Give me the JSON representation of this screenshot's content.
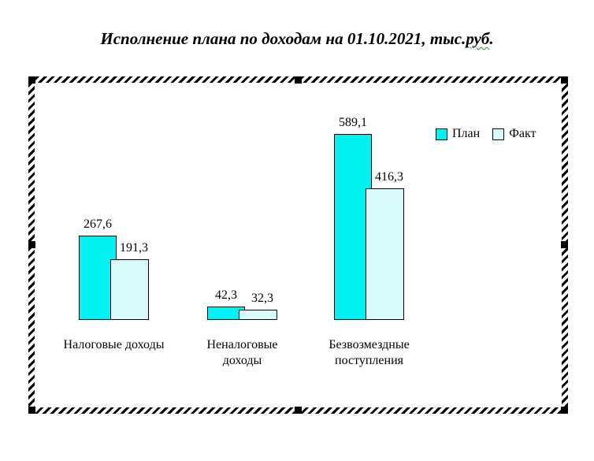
{
  "title": {
    "before_flag": "Исполнение плана по доходам на 01.10.2021, тыс.",
    "flagged": "руб",
    "after_flag": ".",
    "full_text": "Исполнение плана по доходам на 01.10.2021, тыс.руб.",
    "spellcheck_underline_color": "#2e8b2e"
  },
  "frame": {
    "style": "diagonal-hatch-border",
    "border_colors": [
      "#000000",
      "#ffffff"
    ],
    "handle_color": "#000000",
    "handles": [
      "top-left",
      "top-middle",
      "top-right",
      "middle-left",
      "middle-right",
      "bottom-left",
      "bottom-middle",
      "bottom-right"
    ]
  },
  "chart_data": {
    "type": "bar",
    "title": "Исполнение плана по доходам на 01.10.2021, тыс.руб.",
    "categories": [
      "Налоговые доходы",
      "Неналоговые доходы",
      "Безвозмездные поступления"
    ],
    "category_lines": [
      [
        "Налоговые доходы"
      ],
      [
        "Неналоговые",
        "доходы"
      ],
      [
        "Безвозмездные",
        "поступления"
      ]
    ],
    "series": [
      {
        "name": "План",
        "color": "#00F2F2",
        "values": [
          267.6,
          42.3,
          589.1
        ],
        "labels": [
          "267,6",
          "42,3",
          "589,1"
        ]
      },
      {
        "name": "Факт",
        "color": "#D7FBFC",
        "values": [
          191.3,
          32.3,
          416.3
        ],
        "labels": [
          "191,3",
          "32,3",
          "416,3"
        ]
      }
    ],
    "ylim": [
      0,
      650
    ],
    "ylabel": "",
    "xlabel": "",
    "grid": false,
    "axes_visible": false,
    "bar_outline_color": "#000000",
    "legend_position": "top-right",
    "plot_background": "#ffffff"
  }
}
